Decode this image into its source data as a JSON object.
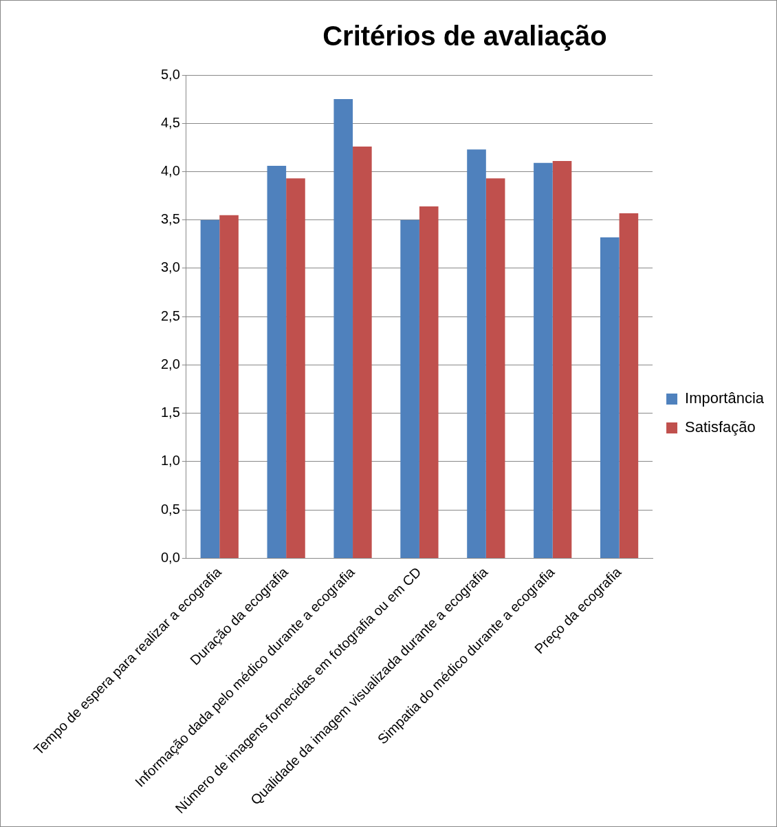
{
  "chart_data": {
    "type": "bar",
    "title": "Critérios de avaliação",
    "categories": [
      "Tempo de espera para realizar a ecografia",
      "Duração da ecografia",
      "Informação dada pelo médico durante a ecografia",
      "Número de imagens fornecidas em fotografia ou em CD",
      "Qualidade da imagem visualizada durante a ecografia",
      "Simpatia do médico durante a ecografia",
      "Preço da ecografia"
    ],
    "series": [
      {
        "name": "Importância",
        "color": "#4f81bd",
        "values": [
          3.5,
          4.06,
          4.75,
          3.5,
          4.23,
          4.09,
          3.32
        ]
      },
      {
        "name": "Satisfação",
        "color": "#c0504d",
        "values": [
          3.55,
          3.93,
          4.26,
          3.64,
          3.93,
          4.11,
          3.57
        ]
      }
    ],
    "ylim": [
      0,
      5
    ],
    "yticks": [
      {
        "value": 0,
        "label": "0,0"
      },
      {
        "value": 0.5,
        "label": "0,5"
      },
      {
        "value": 1,
        "label": "1,0"
      },
      {
        "value": 1.5,
        "label": "1,5"
      },
      {
        "value": 2,
        "label": "2,0"
      },
      {
        "value": 2.5,
        "label": "2,5"
      },
      {
        "value": 3,
        "label": "3,0"
      },
      {
        "value": 3.5,
        "label": "3,5"
      },
      {
        "value": 4,
        "label": "4,0"
      },
      {
        "value": 4.5,
        "label": "4,5"
      },
      {
        "value": 5,
        "label": "5,0"
      }
    ],
    "grid": "y",
    "legend": "right"
  }
}
